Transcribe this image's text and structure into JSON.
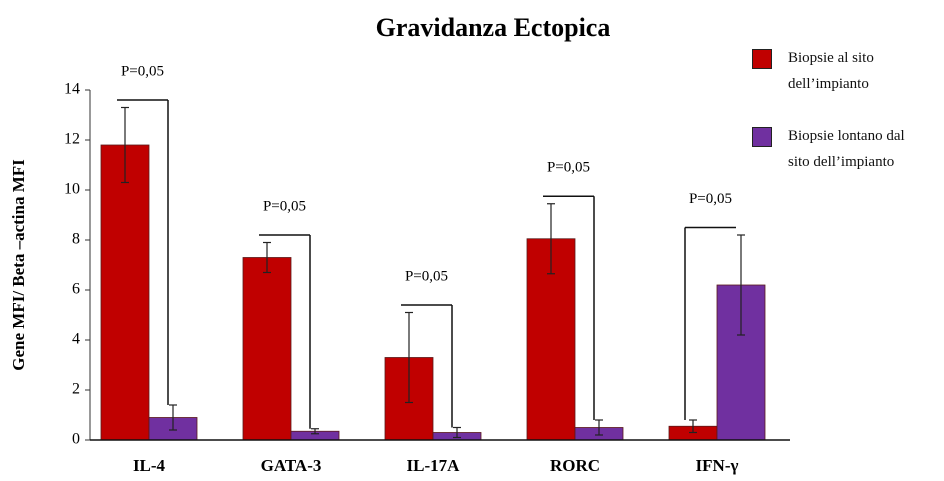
{
  "chart_data": {
    "type": "bar",
    "title": "Gravidanza Ectopica",
    "ylabel": "Gene MFI/ Beta –actina MFI",
    "categories": [
      "IL-4",
      "GATA-3",
      "IL-17A",
      "RORC",
      "IFN-γ"
    ],
    "series": [
      {
        "name": "Biopsie al sito dell’impianto",
        "color": "#c00000",
        "values": [
          11.8,
          7.3,
          3.3,
          8.05,
          0.55
        ],
        "errors": [
          1.5,
          0.6,
          1.8,
          1.4,
          0.25
        ]
      },
      {
        "name": "Biopsie lontano dal sito dell’impianto",
        "color": "#7030a0",
        "values": [
          0.9,
          0.35,
          0.3,
          0.5,
          6.2
        ],
        "errors": [
          0.5,
          0.1,
          0.2,
          0.3,
          2.0
        ]
      }
    ],
    "annotations": [
      "P=0,05",
      "P=0,05",
      "P=0,05",
      "P=0,05",
      "P=0,05"
    ],
    "ylim": [
      0,
      14
    ],
    "yticks": [
      0,
      2,
      4,
      6,
      8,
      10,
      12,
      14
    ],
    "legend": "upper right"
  }
}
